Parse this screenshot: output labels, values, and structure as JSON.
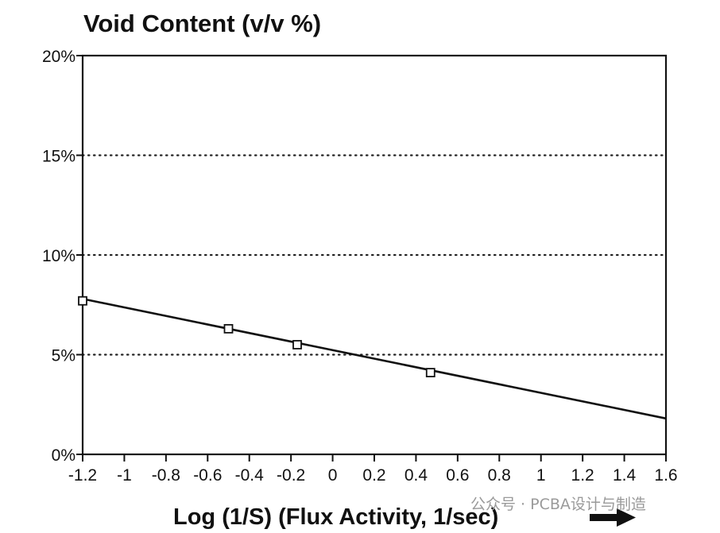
{
  "chart_data": {
    "type": "line",
    "title": "Void Content (v/v %)",
    "xlabel": "Log (1/S) (Flux Activity, 1/sec)",
    "ylabel": "",
    "xlim": [
      -1.2,
      1.6
    ],
    "ylim": [
      0,
      20
    ],
    "x_ticks": [
      -1.2,
      -1,
      -0.8,
      -0.6,
      -0.4,
      -0.2,
      0,
      0.2,
      0.4,
      0.6,
      0.8,
      1,
      1.2,
      1.4,
      1.6
    ],
    "x_tick_labels": [
      "-1.2",
      "-1",
      "-0.8",
      "-0.6",
      "-0.4",
      "-0.2",
      "0",
      "0.2",
      "0.4",
      "0.6",
      "0.8",
      "1",
      "1.2",
      "1.4",
      "1.6"
    ],
    "y_ticks": [
      0,
      5,
      10,
      15,
      20
    ],
    "y_tick_labels": [
      "0%",
      "5%",
      "10%",
      "15%",
      "20%"
    ],
    "grid": "horizontal dotted",
    "series": [
      {
        "marker": "square",
        "points": [
          {
            "x": -1.2,
            "y": 7.7
          },
          {
            "x": -0.5,
            "y": 6.3
          },
          {
            "x": -0.17,
            "y": 5.5
          },
          {
            "x": 0.47,
            "y": 4.1
          }
        ]
      }
    ],
    "trend_line": {
      "x": [
        -1.2,
        1.6
      ],
      "y": [
        7.8,
        1.8
      ]
    }
  },
  "watermark": "公众号 · PCBA设计与制造",
  "colors": {
    "ink": "#111111",
    "grid": "#222222",
    "watermark": "#9a9a9a"
  }
}
